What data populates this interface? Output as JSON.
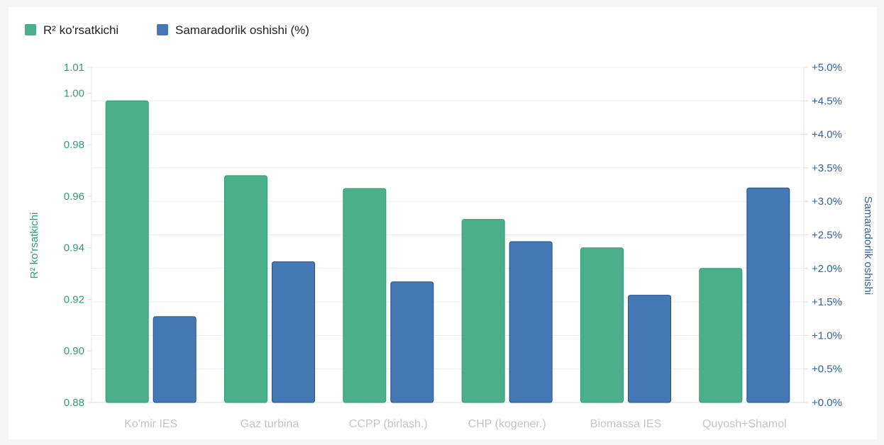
{
  "chart_data": {
    "type": "bar",
    "categories": [
      "Ko'mir IES",
      "Gaz turbina",
      "CCPP (birlash.)",
      "CHP (kogener.)",
      "Biomassa IES",
      "Quyosh+Shamol"
    ],
    "series": [
      {
        "name": "R² ko'rsatkichi",
        "axis": "left",
        "color": "#4aaf8a",
        "stroke": "#2e9e73",
        "values": [
          0.997,
          0.968,
          0.963,
          0.951,
          0.94,
          0.932
        ]
      },
      {
        "name": "Samaradorlik oshishi (%)",
        "axis": "right",
        "color": "#4479b5",
        "stroke": "#1f4f8f",
        "values": [
          1.28,
          2.1,
          1.8,
          2.4,
          1.6,
          3.2
        ]
      }
    ],
    "y_left": {
      "label": "R² ko'rsatkichi",
      "ylim": [
        0.88,
        1.01
      ],
      "ticks": [
        "0.88",
        "0.90",
        "0.92",
        "0.94",
        "0.96",
        "0.98",
        "1.00",
        "1.01"
      ],
      "tick_values": [
        0.88,
        0.9,
        0.92,
        0.94,
        0.96,
        0.98,
        1.0,
        1.01
      ],
      "color": "#2e9e73"
    },
    "y_right": {
      "label": "Samaradorlik oshishi",
      "ylim": [
        0,
        5
      ],
      "ticks": [
        "+0.0%",
        "+0.5%",
        "+1.0%",
        "+1.5%",
        "+2.0%",
        "+2.5%",
        "+3.0%",
        "+3.5%",
        "+4.0%",
        "+4.5%",
        "+5.0%"
      ],
      "tick_values": [
        0,
        0.5,
        1,
        1.5,
        2,
        2.5,
        3,
        3.5,
        4,
        4.5,
        5
      ],
      "color": "#2f62a6"
    },
    "grid": true,
    "legend_position": "top-left"
  }
}
